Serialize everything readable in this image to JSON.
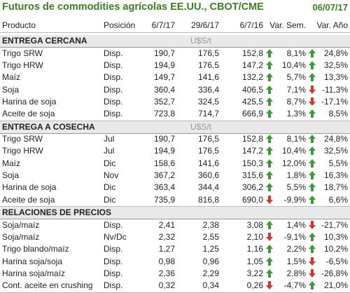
{
  "header": {
    "title": "Futuros de commodities agrícolas EE.UU., CBOT/CME",
    "date": "06/07/17"
  },
  "columns": [
    "Producto",
    "Posición",
    "6/7/17",
    "29/6/17",
    "6/7/16",
    "Var. Sem.",
    "Var. Año"
  ],
  "sections": [
    {
      "title": "ENTREGA CERCANA",
      "unit": "U$S/t",
      "rows": [
        [
          "Trigo SRW",
          "Disp.",
          "190,7",
          "176,5",
          "152,8",
          "8,1%",
          "24,8%"
        ],
        [
          "Trigo HRW",
          "Disp.",
          "194,9",
          "176,5",
          "147,2",
          "10,4%",
          "32,5%"
        ],
        [
          "Maíz",
          "Disp.",
          "149,7",
          "141,6",
          "132,2",
          "5,7%",
          "13,3%"
        ],
        [
          "Soja",
          "Disp.",
          "360,4",
          "336,4",
          "406,5",
          "7,1%",
          "-11,3%"
        ],
        [
          "Harina de soja",
          "Disp.",
          "352,7",
          "324,5",
          "425,5",
          "8,7%",
          "-17,1%"
        ],
        [
          "Aceite de soja",
          "Disp.",
          "723,8",
          "714,7",
          "666,9",
          "1,3%",
          "8,5%"
        ]
      ]
    },
    {
      "title": "ENTREGA A COSECHA",
      "unit": "U$S/t",
      "rows": [
        [
          "Trigo SRW",
          "Jul",
          "190,7",
          "176,5",
          "152,8",
          "8,1%",
          "24,8%"
        ],
        [
          "Trigo HRW",
          "Jul",
          "194,9",
          "176,5",
          "147,2",
          "10,4%",
          "32,5%"
        ],
        [
          "Maíz",
          "Dic",
          "158,6",
          "141,6",
          "150,3",
          "12,0%",
          "5,5%"
        ],
        [
          "Soja",
          "Nov",
          "367,2",
          "360,6",
          "315,6",
          "1,8%",
          "16,3%"
        ],
        [
          "Harina de soja",
          "Dic",
          "363,4",
          "344,4",
          "306,2",
          "5,5%",
          "18,7%"
        ],
        [
          "Aceite de soja",
          "Dic",
          "735,9",
          "816,8",
          "690,0",
          "-9,9%",
          "6,6%"
        ]
      ]
    },
    {
      "title": "RELACIONES DE PRECIOS",
      "rows": [
        [
          "Soja/maíz",
          "Disp.",
          "2,41",
          "2,38",
          "3,08",
          "1,4%",
          "-21,7%"
        ],
        [
          "Soja/maíz",
          "Nv/Dc",
          "2,32",
          "2,55",
          "2,10",
          "-9,1%",
          "10,3%"
        ],
        [
          "Trigo blando/maíz",
          "Disp.",
          "1,27",
          "1,25",
          "1,16",
          "2,2%",
          "10,2%"
        ],
        [
          "Harina soja/soja",
          "Disp.",
          "0,98",
          "0,96",
          "1,05",
          "1,5%",
          "-6,5%"
        ],
        [
          "Harina soja/maíz",
          "Disp.",
          "2,36",
          "2,29",
          "3,22",
          "2,8%",
          "-26,8%"
        ],
        [
          "Cont. aceite en crushing",
          "Disp.",
          "0,32",
          "0,34",
          "0,26",
          "-4,7%",
          "21,0%"
        ]
      ]
    }
  ]
}
